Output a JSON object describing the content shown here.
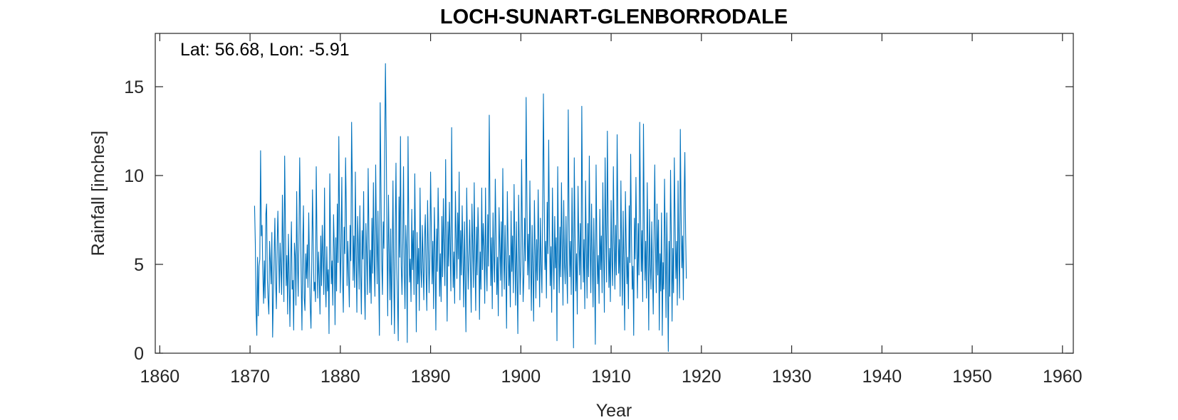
{
  "chart_data": {
    "type": "line",
    "title": "LOCH-SUNART-GLENBORRODALE",
    "annotation": "Lat: 56.68, Lon: -5.91",
    "xlabel": "Year",
    "ylabel": "Rainfall [inches]",
    "xlim": [
      1859.5,
      1961.2
    ],
    "ylim": [
      0,
      18
    ],
    "xticks": [
      1860,
      1870,
      1880,
      1890,
      1900,
      1910,
      1920,
      1930,
      1940,
      1950,
      1960
    ],
    "yticks": [
      0,
      5,
      10,
      15
    ],
    "grid": false,
    "series": [
      {
        "color": "#0072BD",
        "x_start": 1870.5,
        "x_step": 0.083333,
        "values": [
          8.3,
          6.2,
          2.4,
          1.0,
          5.4,
          2.1,
          4.9,
          5.3,
          11.4,
          6.6,
          7.2,
          4.5,
          2.8,
          5.2,
          3.1,
          7.8,
          8.4,
          4.2,
          3.0,
          2.2,
          6.3,
          5.1,
          3.9,
          6.8,
          0.9,
          3.2,
          5.4,
          7.6,
          4.1,
          2.5,
          6.0,
          8.0,
          5.6,
          3.4,
          6.2,
          4.8,
          3.3,
          8.9,
          6.1,
          2.9,
          11.1,
          7.3,
          3.8,
          5.5,
          2.2,
          6.7,
          4.4,
          1.5,
          5.0,
          7.4,
          3.6,
          4.1,
          1.3,
          6.2,
          5.5,
          2.7,
          9.1,
          5.3,
          3.2,
          6.4,
          11.0,
          7.5,
          4.2,
          1.3,
          6.0,
          8.3,
          3.1,
          2.4,
          5.6,
          4.2,
          6.1,
          3.7,
          7.9,
          5.2,
          2.6,
          1.4,
          4.8,
          9.2,
          6.3,
          3.5,
          4.0,
          2.9,
          10.5,
          6.4,
          3.1,
          5.7,
          4.3,
          2.2,
          6.6,
          3.8,
          7.2,
          5.4,
          3.3,
          9.3,
          4.1,
          2.6,
          6.0,
          3.5,
          4.7,
          1.1,
          10.1,
          6.6,
          3.9,
          5.2,
          2.7,
          7.8,
          5.9,
          1.6,
          6.5,
          3.5,
          8.4,
          5.1,
          12.2,
          7.4,
          3.4,
          6.0,
          9.9,
          4.2,
          2.3,
          7.1,
          5.6,
          11.0,
          8.1,
          3.8,
          6.3,
          4.4,
          2.6,
          7.2,
          5.2,
          13.0,
          9.4,
          4.1,
          6.6,
          3.7,
          10.2,
          5.5,
          2.3,
          7.7,
          6.0,
          3.6,
          8.3,
          4.6,
          2.2,
          6.9,
          5.3,
          9.1,
          4.0,
          1.9,
          7.3,
          5.6,
          3.3,
          10.4,
          6.9,
          3.4,
          5.8,
          2.8,
          7.6,
          4.5,
          9.6,
          5.1,
          3.2,
          10.6,
          6.7,
          3.9,
          8.0,
          4.2,
          1.0,
          14.1,
          9.6,
          5.2,
          3.3,
          7.4,
          5.9,
          11.6,
          16.3,
          12.0,
          6.3,
          2.1,
          8.9,
          5.7,
          3.0,
          7.0,
          1.6,
          5.3,
          9.7,
          4.2,
          1.1,
          6.8,
          10.7,
          4.9,
          3.1,
          0.7,
          8.8,
          5.4,
          12.2,
          4.9,
          3.3,
          6.2,
          10.5,
          4.6,
          2.5,
          7.2,
          5.8,
          0.6,
          12.2,
          7.3,
          4.0,
          5.3,
          2.9,
          8.1,
          4.7,
          6.9,
          3.3,
          10.1,
          5.8,
          1.2,
          6.8,
          3.9,
          5.9,
          2.4,
          9.3,
          4.8,
          3.7,
          7.2,
          5.1,
          3.0,
          6.5,
          7.8,
          4.4,
          2.4,
          8.6,
          6.0,
          3.4,
          5.3,
          10.2,
          7.1,
          3.9,
          6.3,
          2.5,
          8.2,
          5.6,
          1.3,
          7.0,
          4.6,
          9.3,
          6.6,
          3.2,
          5.6,
          2.9,
          7.7,
          4.3,
          8.7,
          6.0,
          3.8,
          10.9,
          5.6,
          1.8,
          7.4,
          4.9,
          8.5,
          6.1,
          3.5,
          12.7,
          7.1,
          3.7,
          5.7,
          2.8,
          9.1,
          6.5,
          4.2,
          7.9,
          5.3,
          10.2,
          3.0,
          6.9,
          4.4,
          8.3,
          5.6,
          2.6,
          7.4,
          4.1,
          1.2,
          9.3,
          6.2,
          3.6,
          5.4,
          7.5,
          4.8,
          2.3,
          8.4,
          6.0,
          3.7,
          9.6,
          5.3,
          2.4,
          7.1,
          4.4,
          8.2,
          6.4,
          1.9,
          5.7,
          3.6,
          9.3,
          4.7,
          7.3,
          6.0,
          2.8,
          9.3,
          5.0,
          3.5,
          7.8,
          4.9,
          13.4,
          8.1,
          3.8,
          6.5,
          2.5,
          7.9,
          5.5,
          4.0,
          9.8,
          6.8,
          3.3,
          5.4,
          2.1,
          8.2,
          6.0,
          4.1,
          7.4,
          3.2,
          10.4,
          5.9,
          3.6,
          7.2,
          4.7,
          1.4,
          9.1,
          6.3,
          3.8,
          5.5,
          2.6,
          8.0,
          4.6,
          6.6,
          3.4,
          9.5,
          5.7,
          2.7,
          7.4,
          4.2,
          1.1,
          8.9,
          6.0,
          3.3,
          5.1,
          10.9,
          6.9,
          2.9,
          4.3,
          7.6,
          5.2,
          14.4,
          8.9,
          4.4,
          6.7,
          3.6,
          9.7,
          5.3,
          2.4,
          7.2,
          4.6,
          1.8,
          8.6,
          5.9,
          3.1,
          6.4,
          4.1,
          9.2,
          6.0,
          2.6,
          7.6,
          5.0,
          3.4,
          8.2,
          14.6,
          9.0,
          4.7,
          6.3,
          3.1,
          8.5,
          5.6,
          12.0,
          7.1,
          3.8,
          6.0,
          2.3,
          9.3,
          5.4,
          3.6,
          7.7,
          4.8,
          6.5,
          0.7,
          10.5,
          5.9,
          3.4,
          7.1,
          4.3,
          9.6,
          6.0,
          2.7,
          8.6,
          5.1,
          3.9,
          7.7,
          4.7,
          2.8,
          13.7,
          8.1,
          4.3,
          6.3,
          3.3,
          9.3,
          5.7,
          0.3,
          11.0,
          6.9,
          3.5,
          5.6,
          2.2,
          9.4,
          6.4,
          4.4,
          7.3,
          3.6,
          13.9,
          8.0,
          4.0,
          6.4,
          2.5,
          9.7,
          5.9,
          3.1,
          7.3,
          4.3,
          11.1,
          6.1,
          3.4,
          8.4,
          5.3,
          2.6,
          7.6,
          4.6,
          0.5,
          10.6,
          6.4,
          3.9,
          5.5,
          2.8,
          8.1,
          4.7,
          6.6,
          3.4,
          9.6,
          5.6,
          2.3,
          11.0,
          6.9,
          4.0,
          12.5,
          7.3,
          3.7,
          5.9,
          2.9,
          8.6,
          5.2,
          3.8,
          10.5,
          6.3,
          3.6,
          7.2,
          4.4,
          12.3,
          7.6,
          4.5,
          6.4,
          3.2,
          9.7,
          5.6,
          2.7,
          8.0,
          4.8,
          1.3,
          9.1,
          6.3,
          3.9,
          5.4,
          2.5,
          8.3,
          5.1,
          11.2,
          6.7,
          3.6,
          4.9,
          1.0,
          7.6,
          5.3,
          9.9,
          6.0,
          3.1,
          7.3,
          4.4,
          13.0,
          8.4,
          4.6,
          6.9,
          2.9,
          12.9,
          7.3,
          4.1,
          6.3,
          3.1,
          9.6,
          5.7,
          1.3,
          8.1,
          5.0,
          3.6,
          7.4,
          4.6,
          2.2,
          6.6,
          10.6,
          6.0,
          3.4,
          8.4,
          4.4,
          7.5,
          1.3,
          5.6,
          3.5,
          7.9,
          1.0,
          5.1,
          3.6,
          9.8,
          6.1,
          2.0,
          7.9,
          4.3,
          0.1,
          6.3,
          3.2,
          10.3,
          6.6,
          1.8,
          5.9,
          3.4,
          11.0,
          7.5,
          4.2,
          6.3,
          2.7,
          9.7,
          5.5,
          3.1,
          12.6,
          7.9,
          4.8,
          6.6,
          3.0,
          8.6,
          11.3,
          6.8,
          4.2
        ]
      }
    ]
  }
}
